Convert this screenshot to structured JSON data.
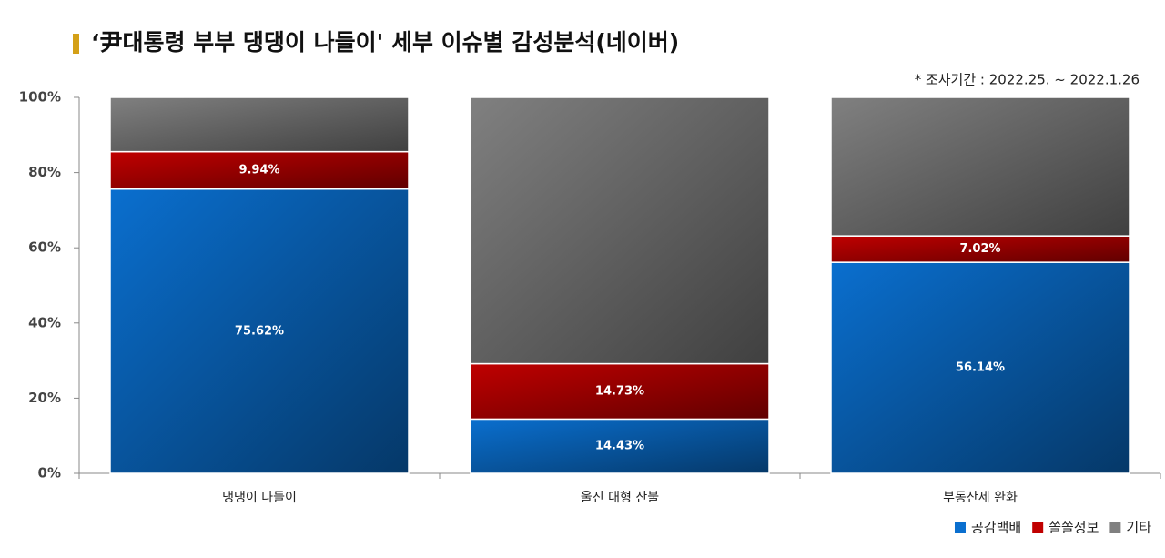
{
  "chart_data": {
    "type": "stacked-bar",
    "title": "‘尹대통령 부부 댕댕이 나들이' 세부 이슈별 감성분석(네이버)",
    "subtitle": "* 조사기간 : 2022.25. ~ 2022.1.26",
    "categories": [
      "댕댕이 나들이",
      "울진 대형 산불",
      "부동산세 완화"
    ],
    "series": [
      {
        "name": "공감백배",
        "color": "#0a6fcf",
        "values": [
          75.62,
          14.43,
          56.14
        ],
        "value_labels": [
          "75.62%",
          "14.43%",
          "56.14%"
        ]
      },
      {
        "name": "쏠쏠정보",
        "color": "#c00000",
        "values": [
          9.94,
          14.73,
          7.02
        ],
        "value_labels": [
          "9.94%",
          "14.73%",
          "7.02%"
        ]
      },
      {
        "name": "기타",
        "color": "#808080",
        "values": [
          14.44,
          70.84,
          36.84
        ]
      }
    ],
    "ylim": [
      0,
      100
    ],
    "yticks": [
      {
        "value": 0,
        "label": "0%"
      },
      {
        "value": 20,
        "label": "20%"
      },
      {
        "value": 40,
        "label": "40%"
      },
      {
        "value": 60,
        "label": "60%"
      },
      {
        "value": 80,
        "label": "80%"
      },
      {
        "value": 100,
        "label": "100%"
      }
    ],
    "legend": "bottom-right"
  }
}
